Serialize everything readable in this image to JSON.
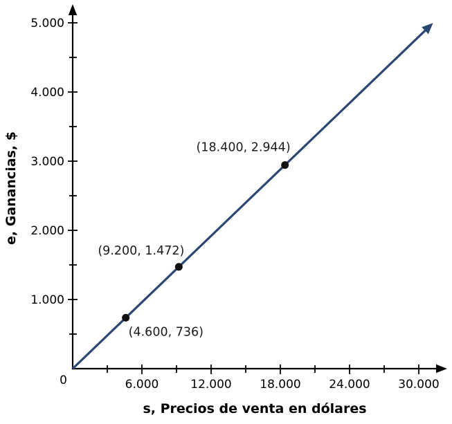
{
  "chart_data": {
    "type": "line",
    "xlabel": "s, Precios de venta en dólares",
    "ylabel": "e, Ganancias, $",
    "origin_label": "0",
    "xlim": [
      0,
      31500
    ],
    "ylim": [
      0,
      5200
    ],
    "grid": false,
    "legend": false,
    "x_major_ticks": [
      {
        "value": 6000,
        "label": "6.000"
      },
      {
        "value": 12000,
        "label": "12.000"
      },
      {
        "value": 18000,
        "label": "18.000"
      },
      {
        "value": 24000,
        "label": "24.000"
      },
      {
        "value": 30000,
        "label": "30.000"
      }
    ],
    "x_minor_ticks": [
      3000,
      9000,
      15000,
      21000,
      27000
    ],
    "y_major_ticks": [
      {
        "value": 1000,
        "label": "1.000"
      },
      {
        "value": 2000,
        "label": "2.000"
      },
      {
        "value": 3000,
        "label": "3.000"
      },
      {
        "value": 4000,
        "label": "4.000"
      },
      {
        "value": 5000,
        "label": "5.000"
      }
    ],
    "y_minor_ticks": [
      500,
      1500,
      2500,
      3500,
      4500
    ],
    "line": {
      "slope": 0.16,
      "x_start": 0,
      "y_start": 0,
      "x_end": 30800,
      "color": "#2b4670"
    },
    "points": [
      {
        "x": 4600,
        "y": 736,
        "label": "(4.600, 736)"
      },
      {
        "x": 9200,
        "y": 1472,
        "label": "(9.200, 1.472)"
      },
      {
        "x": 18400,
        "y": 2944,
        "label": "(18.400, 2.944)"
      }
    ],
    "point_color": "#111111",
    "axis_color": "#000000"
  }
}
